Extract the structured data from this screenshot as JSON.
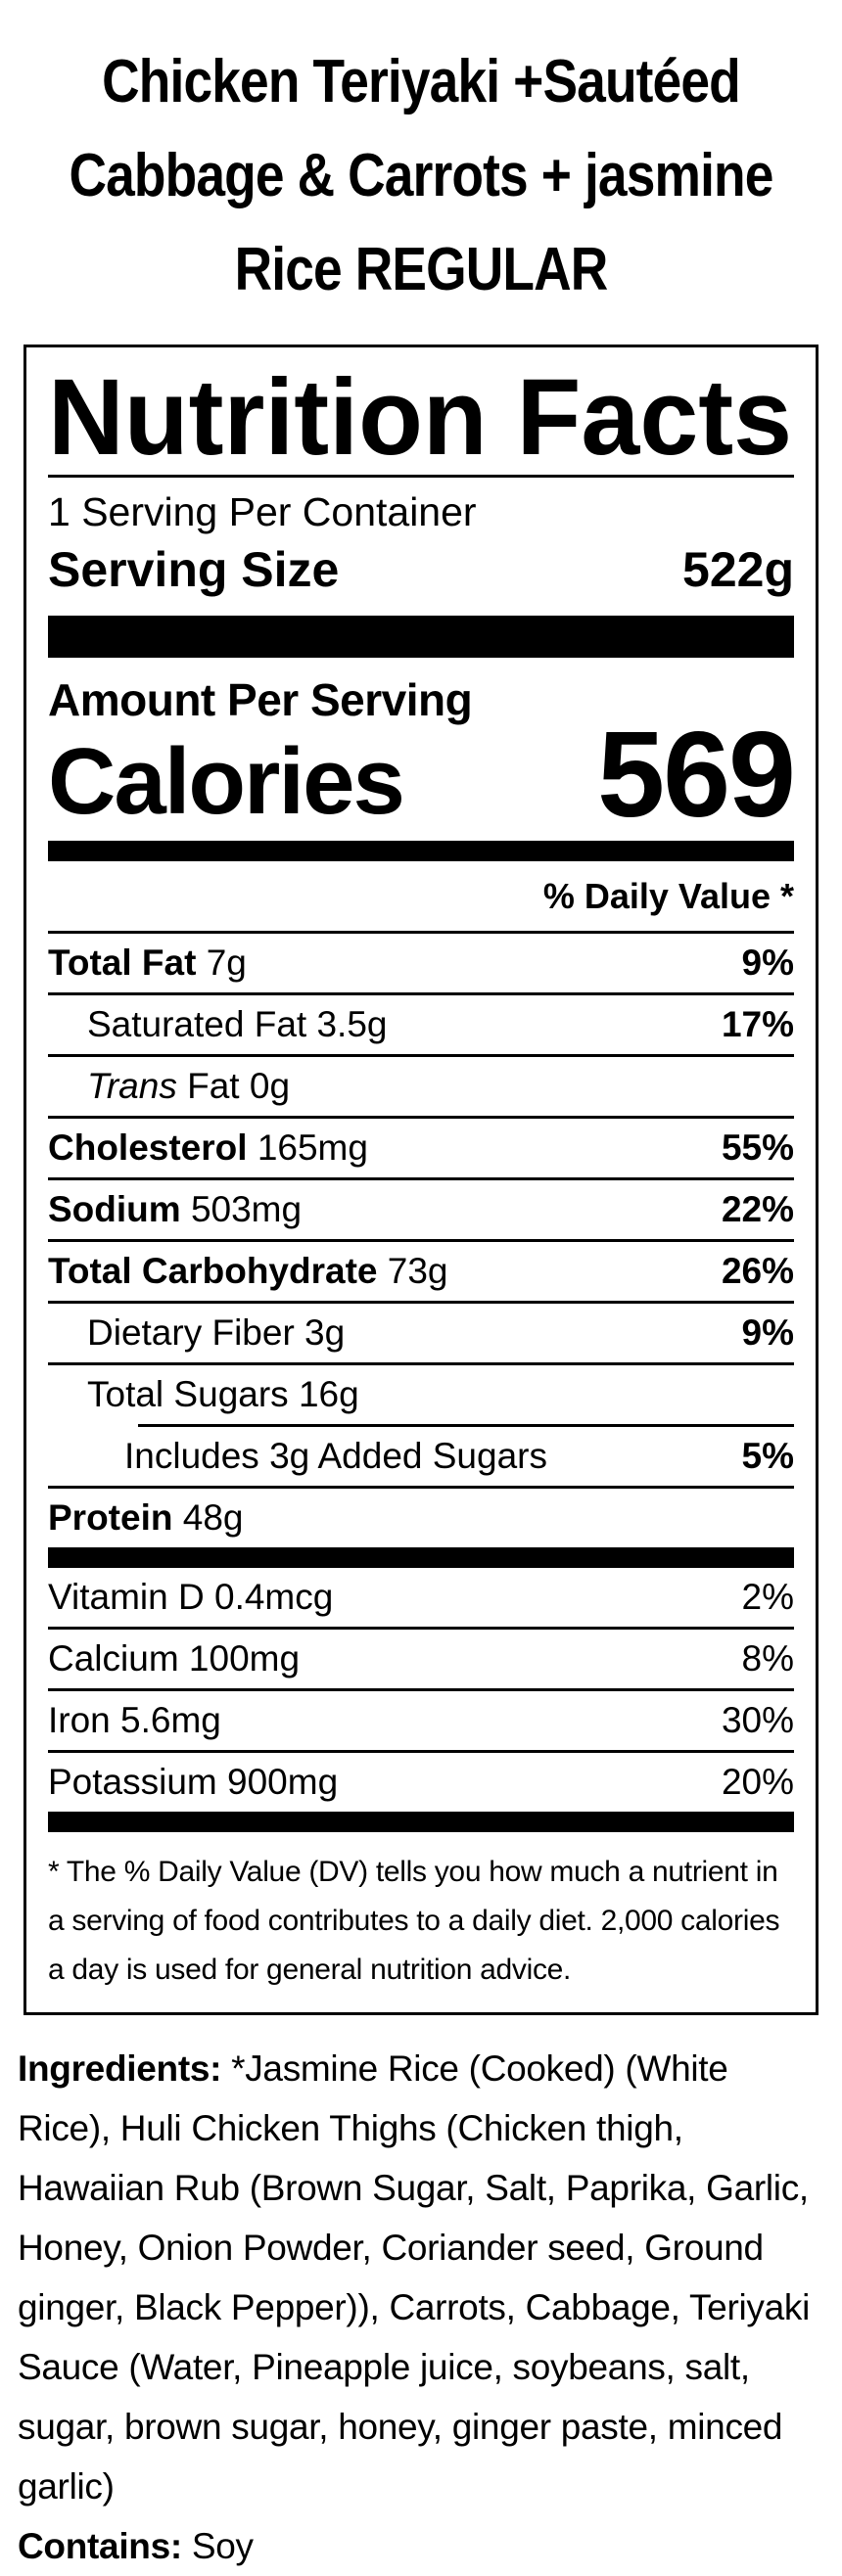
{
  "title_lines": [
    "Chicken Teriyaki +Sautéed",
    "Cabbage & Carrots + jasmine",
    "Rice REGULAR"
  ],
  "label": {
    "heading": "Nutrition Facts",
    "servings_per_container": "1 Serving Per Container",
    "serving_size_label": "Serving Size",
    "serving_size_value": "522g",
    "amount_per_serving": "Amount Per Serving",
    "calories_label": "Calories",
    "calories_value": "569",
    "daily_value_header": "% Daily Value *",
    "rows": [
      {
        "bold": "Total Fat",
        "italic": "",
        "text": " 7g",
        "pct": "9%"
      },
      {
        "bold": "",
        "italic": "",
        "text": "Saturated Fat 3.5g",
        "pct": "17%"
      },
      {
        "bold": "",
        "italic": "Trans",
        "text": " Fat 0g",
        "pct": ""
      },
      {
        "bold": "Cholesterol",
        "italic": "",
        "text": " 165mg",
        "pct": "55%"
      },
      {
        "bold": "Sodium",
        "italic": "",
        "text": " 503mg",
        "pct": "22%"
      },
      {
        "bold": "Total Carbohydrate",
        "italic": "",
        "text": " 73g",
        "pct": "26%"
      },
      {
        "bold": "",
        "italic": "",
        "text": "Dietary Fiber 3g",
        "pct": "9%"
      },
      {
        "bold": "",
        "italic": "",
        "text": "Total Sugars 16g",
        "pct": ""
      },
      {
        "bold": "",
        "italic": "",
        "text": "Includes 3g Added Sugars",
        "pct": "5%"
      },
      {
        "bold": "Protein",
        "italic": "",
        "text": " 48g",
        "pct": ""
      }
    ],
    "micronutrients": [
      {
        "text": "Vitamin D 0.4mcg",
        "pct": "2%"
      },
      {
        "text": "Calcium 100mg",
        "pct": "8%"
      },
      {
        "text": "Iron 5.6mg",
        "pct": "30%"
      },
      {
        "text": "Potassium 900mg",
        "pct": "20%"
      }
    ],
    "footnote": "* The % Daily Value (DV) tells you how much a nutrient in a serving of food contributes to a daily diet. 2,000 calories a day is used for general nutrition advice."
  },
  "ingredients": {
    "label": "Ingredients:",
    "text": " *Jasmine Rice (Cooked) (White Rice), Huli Chicken Thighs (Chicken thigh, Hawaiian Rub (Brown Sugar, Salt, Paprika, Garlic, Honey, Onion Powder, Coriander seed, Ground ginger, Black Pepper)), Carrots, Cabbage, Teriyaki Sauce (Water, Pineapple juice, soybeans, salt, sugar, brown sugar, honey, ginger paste, minced garlic)",
    "contains_label": "Contains:",
    "contains_value": " Soy"
  }
}
